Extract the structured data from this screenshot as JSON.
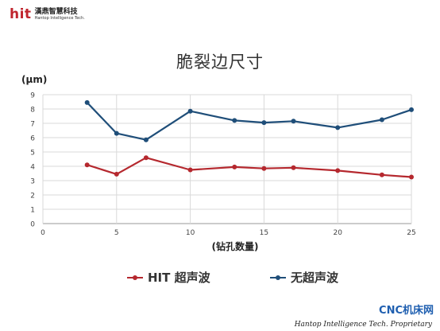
{
  "logo": {
    "brand": "hit",
    "name_cn": "漢鼎智慧科技",
    "name_en": "Hantop Intelligence Tech."
  },
  "chart_data": {
    "type": "line",
    "title": "脆裂边尺寸",
    "ylabel": "(μm)",
    "xlabel": "(钻孔数量)",
    "xlim": [
      0,
      25
    ],
    "ylim": [
      0,
      9
    ],
    "xticks": [
      0,
      5,
      10,
      15,
      20,
      25
    ],
    "yticks": [
      0,
      1,
      2,
      3,
      4,
      5,
      6,
      7,
      8,
      9
    ],
    "grid": true,
    "legend_position": "bottom",
    "series": [
      {
        "name": "HIT 超声波",
        "color": "#b5282e",
        "x": [
          3,
          5,
          7,
          10,
          13,
          15,
          17,
          20,
          23,
          25
        ],
        "y": [
          4.1,
          3.45,
          4.6,
          3.75,
          3.95,
          3.85,
          3.9,
          3.7,
          3.4,
          3.25
        ]
      },
      {
        "name": "无超声波",
        "color": "#1f4e79",
        "x": [
          3,
          5,
          7,
          10,
          13,
          15,
          17,
          20,
          23,
          25
        ],
        "y": [
          8.45,
          6.3,
          5.85,
          7.85,
          7.2,
          7.05,
          7.15,
          6.7,
          7.25,
          7.95
        ]
      }
    ]
  },
  "watermark": "CNC机床网",
  "footer_note": "Hantop Intelligence Tech. Proprietary"
}
